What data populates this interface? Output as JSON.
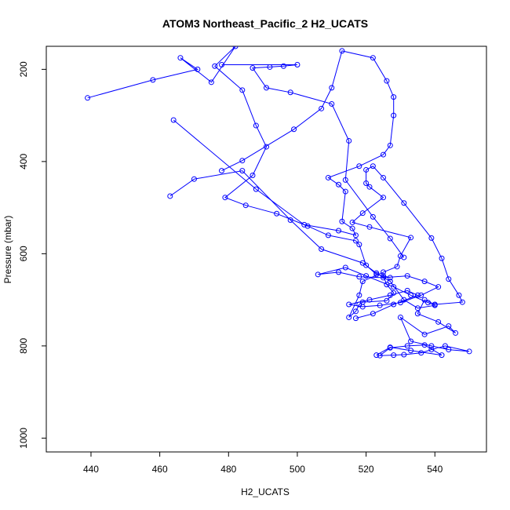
{
  "chart_data": {
    "type": "line",
    "title": "ATOM3 Northeast_Pacific_2 H2_UCATS",
    "xlabel": "H2_UCATS",
    "ylabel": "Pressure (mbar)",
    "xlim": [
      427,
      555
    ],
    "ylim": [
      1030,
      150
    ],
    "y_reversed": true,
    "x_ticks": [
      440,
      460,
      480,
      500,
      520,
      540
    ],
    "y_ticks": [
      200,
      400,
      600,
      800,
      1000
    ],
    "grid": false,
    "legend": "none",
    "marker": "open-circle",
    "color": "#0000ff",
    "series": [
      {
        "x": [
          439,
          458,
          471,
          466,
          475,
          482,
          476,
          484,
          488,
          491,
          487,
          479,
          485,
          494,
          503,
          509,
          517,
          518,
          520,
          523,
          527,
          525,
          526,
          528,
          526,
          519,
          518,
          517,
          515,
          518,
          519,
          525,
          529,
          530,
          533,
          521,
          516,
          519,
          525,
          521,
          520,
          520,
          522,
          525,
          531,
          539,
          542,
          544,
          547,
          548,
          540,
          537,
          535,
          541,
          546,
          544,
          537,
          530,
          533,
          539,
          544,
          550,
          543,
          539,
          536,
          531,
          528,
          524,
          527,
          532,
          537,
          542,
          533,
          527,
          523
        ],
        "y": [
          262,
          223,
          200,
          175,
          228,
          150,
          193,
          245,
          322,
          368,
          430,
          478,
          495,
          513,
          540,
          560,
          572,
          580,
          625,
          645,
          652,
          648,
          667,
          685,
          702,
          705,
          710,
          725,
          738,
          690,
          660,
          640,
          628,
          605,
          565,
          542,
          532,
          512,
          478,
          455,
          447,
          418,
          410,
          435,
          490,
          566,
          610,
          655,
          690,
          705,
          710,
          700,
          730,
          748,
          772,
          757,
          775,
          738,
          790,
          800,
          808,
          812,
          800,
          808,
          815,
          819,
          820,
          821,
          804,
          800,
          798,
          820,
          810,
          803,
          820
        ]
      },
      {
        "x": [
          463,
          470,
          484,
          498,
          507,
          519,
          523,
          527,
          531,
          535,
          540,
          538,
          533,
          528,
          520,
          514,
          506,
          512,
          518,
          525,
          532,
          537,
          541,
          536,
          530,
          524,
          519,
          515,
          521,
          527,
          532,
          535,
          528,
          522,
          517
        ],
        "y": [
          475,
          438,
          420,
          527,
          590,
          620,
          642,
          660,
          700,
          718,
          712,
          706,
          690,
          672,
          648,
          630,
          645,
          640,
          650,
          652,
          648,
          660,
          672,
          690,
          706,
          712,
          715,
          710,
          700,
          690,
          680,
          690,
          710,
          730,
          740
        ]
      },
      {
        "x": [
          464,
          488,
          502,
          512,
          517,
          516,
          513,
          514,
          512,
          509,
          518,
          525,
          527,
          528,
          528,
          526,
          522,
          513,
          510,
          507,
          499,
          484,
          478
        ],
        "y": [
          310,
          460,
          537,
          550,
          560,
          545,
          530,
          465,
          450,
          435,
          410,
          385,
          365,
          300,
          260,
          225,
          175,
          160,
          240,
          285,
          330,
          398,
          420
        ]
      },
      {
        "x": [
          478,
          500,
          496,
          492,
          487,
          491,
          498,
          510,
          515,
          514,
          522,
          527,
          531
        ],
        "y": [
          190,
          190,
          193,
          195,
          197,
          240,
          250,
          275,
          355,
          440,
          520,
          567,
          608
        ]
      }
    ]
  }
}
